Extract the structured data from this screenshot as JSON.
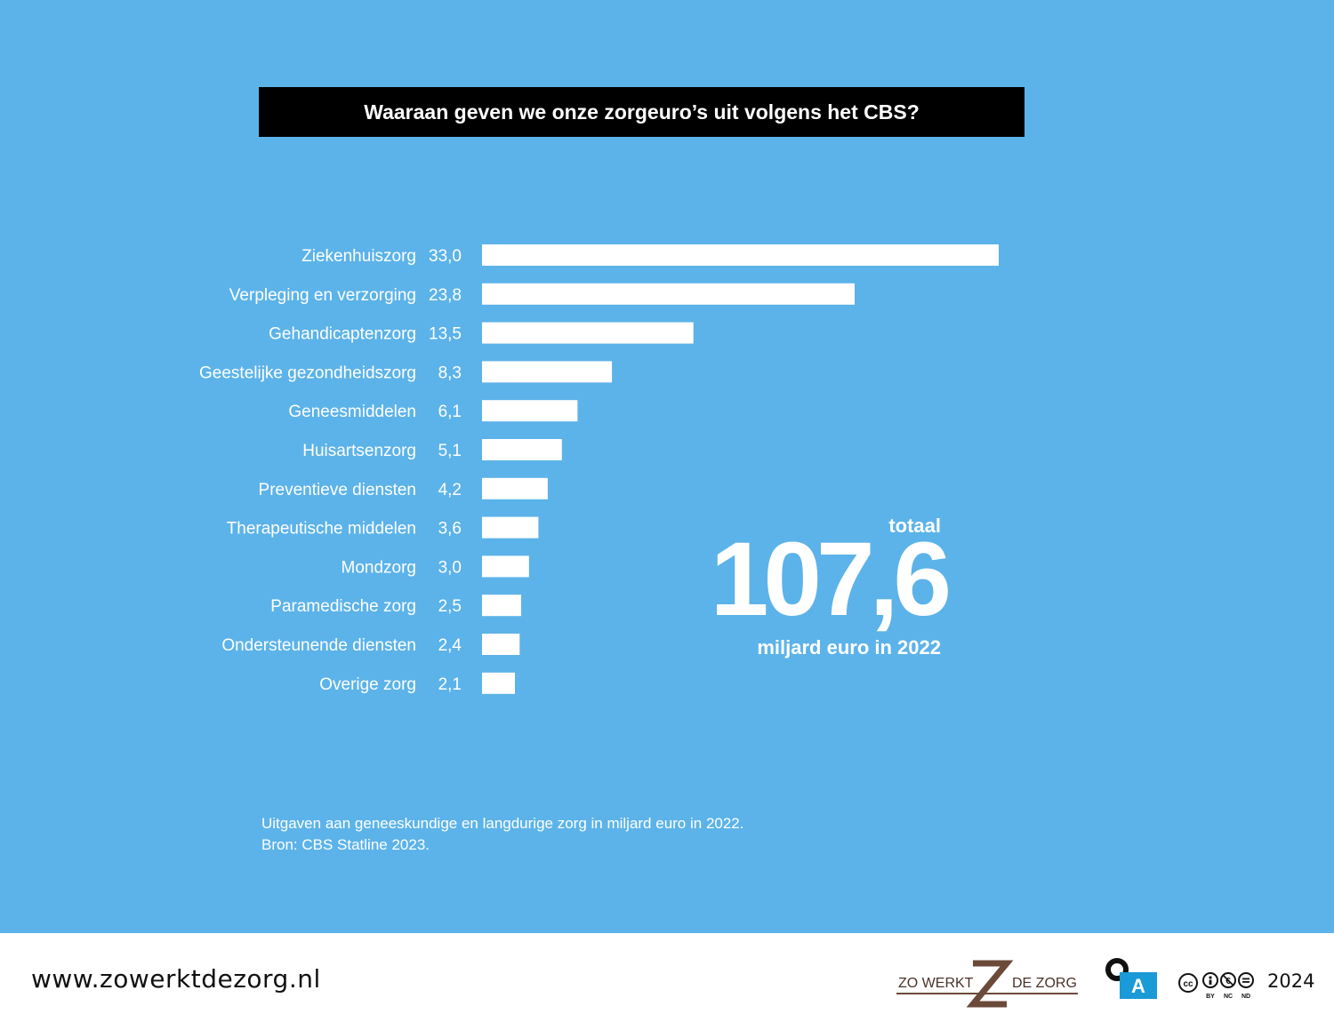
{
  "chart_data": {
    "type": "bar",
    "orientation": "horizontal",
    "title": "Waaraan geven we onze zorgeuro’s uit volgens het CBS?",
    "categories": [
      "Ziekenhuiszorg",
      "Verpleging en verzorging",
      "Gehandicaptenzorg",
      "Geestelijke gezondheidszorg",
      "Geneesmiddelen",
      "Huisartsenzorg",
      "Preventieve diensten",
      "Therapeutische middelen",
      "Mondzorg",
      "Paramedische zorg",
      "Ondersteunende diensten",
      "Overige zorg"
    ],
    "values": [
      33.0,
      23.8,
      13.5,
      8.3,
      6.1,
      5.1,
      4.2,
      3.6,
      3.0,
      2.5,
      2.4,
      2.1
    ],
    "value_labels": [
      "33,0",
      "23,8",
      "13,5",
      "8,3",
      "6,1",
      "5,1",
      "4,2",
      "3,6",
      "3,0",
      "2,5",
      "2,4",
      "2,1"
    ],
    "xlabel": "",
    "ylabel": "",
    "grid": false,
    "bar_color": "#ffffff"
  },
  "total": {
    "label": "totaal",
    "value": "107,6",
    "unit": "miljard euro in 2022"
  },
  "notes": {
    "description": "Uitgaven aan geneeskundige en langdurige zorg in miljard euro in 2022.",
    "source": "Bron: CBS Statline 2023."
  },
  "footer": {
    "url": "www.zowerktdezorg.nl",
    "logo_left": "ZO WERKT",
    "logo_right": "DE ZORG",
    "oa_letter": "A",
    "cc_labels": [
      "BY",
      "NC",
      "ND"
    ],
    "year": "2024"
  },
  "colors": {
    "background": "#5cb3e9",
    "title_bg": "#000000",
    "logo_brown": "#6b4a3a",
    "oa_blue": "#1a9ad6"
  }
}
